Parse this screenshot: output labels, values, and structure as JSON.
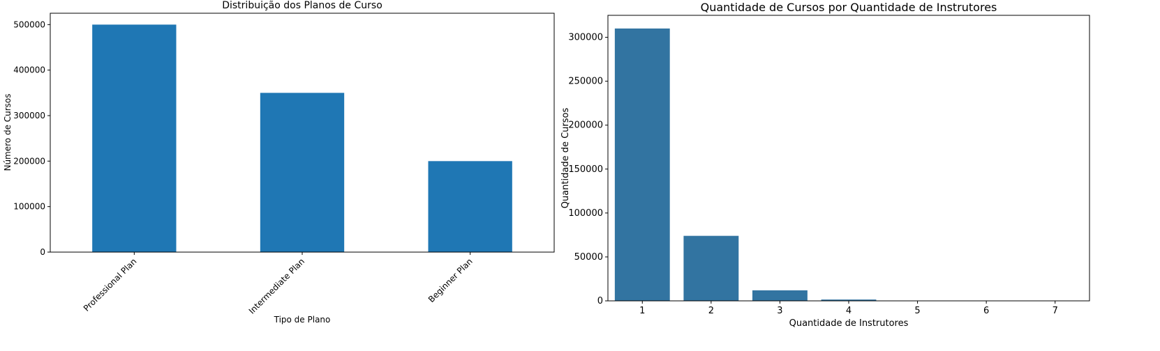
{
  "chart_data": [
    {
      "type": "bar",
      "title": "Distribuição dos Planos de Curso",
      "xlabel": "Tipo de Plano",
      "ylabel": "Número de Cursos",
      "categories": [
        "Professional Plan",
        "Intermediate Plan",
        "Beginner Plan"
      ],
      "values": [
        500000,
        350000,
        200000
      ],
      "ylim": [
        0,
        525000
      ],
      "yticks": [
        0,
        100000,
        200000,
        300000,
        400000,
        500000
      ],
      "ytick_labels": [
        "0",
        "100000",
        "200000",
        "300000",
        "400000",
        "500000"
      ],
      "color": "#1f77b4",
      "grid": false
    },
    {
      "type": "bar",
      "title": "Quantidade de Cursos por Quantidade de Instrutores",
      "xlabel": "Quantidade de Instrutores",
      "ylabel": "Quantidade de Cursos",
      "categories": [
        "1",
        "2",
        "3",
        "4",
        "5",
        "6",
        "7"
      ],
      "values": [
        310000,
        74000,
        12000,
        1500,
        100,
        30,
        10
      ],
      "ylim": [
        0,
        325000
      ],
      "yticks": [
        0,
        50000,
        100000,
        150000,
        200000,
        250000,
        300000
      ],
      "ytick_labels": [
        "0",
        "50000",
        "100000",
        "150000",
        "200000",
        "250000",
        "300000"
      ],
      "color": "#3274a1",
      "grid": false
    }
  ]
}
